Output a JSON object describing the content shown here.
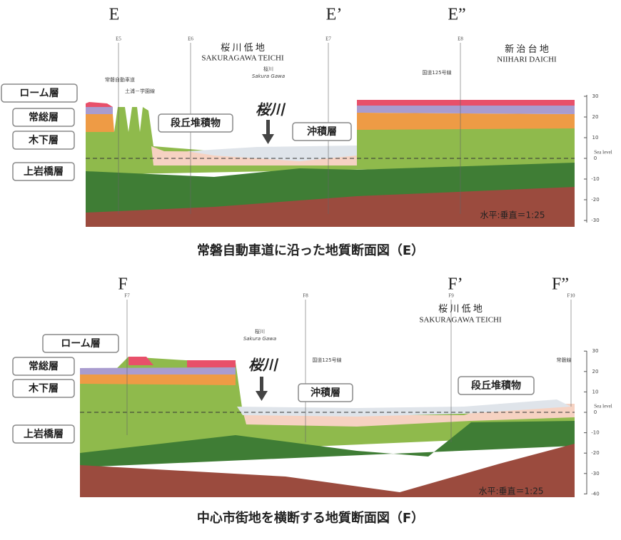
{
  "panels": [
    {
      "markers": [
        "E",
        "E’",
        "E”"
      ],
      "region_labels": [
        "桜 川 低 地",
        "SAKURAGAWA TEICHI",
        "新 治 台 地",
        "NIIHARI DAICHI"
      ],
      "wells": [
        "E5",
        "E6",
        "E7",
        "E8"
      ],
      "roads": [
        "常磐自動車道",
        "土浦－学園線",
        "国道125号線"
      ],
      "river_small": [
        "桜川",
        "Sakura Gawa"
      ],
      "river": "桜川",
      "callouts": [
        "ローム層",
        "常総層",
        "木下層",
        "上岩橋層",
        "段丘堆積物",
        "沖積層"
      ],
      "sea_level": "Sea level",
      "depth_ticks": [
        30,
        20,
        10,
        0,
        -10,
        -20,
        -30
      ],
      "scale": "水平:垂直＝1:25",
      "caption": "常磐自動車道に沿った地質断面図（E）"
    },
    {
      "markers": [
        "F",
        "F’",
        "F”"
      ],
      "region_labels": [
        "桜 川 低 地",
        "SAKURAGAWA TEICHI"
      ],
      "wells": [
        "F7",
        "F8",
        "F9",
        "F10"
      ],
      "roads": [
        "国道125号線",
        "常磐線"
      ],
      "river_small": [
        "桜川",
        "Sakura Gawa"
      ],
      "river": "桜川",
      "callouts": [
        "ローム層",
        "常総層",
        "木下層",
        "上岩橋層",
        "沖積層",
        "段丘堆積物"
      ],
      "sea_level": "Sea level",
      "depth_ticks": [
        30,
        20,
        10,
        0,
        -10,
        -20,
        -30,
        -40
      ],
      "scale": "水平:垂直＝1:25",
      "caption": "中心市街地を横断する地質断面図（F）"
    }
  ]
}
